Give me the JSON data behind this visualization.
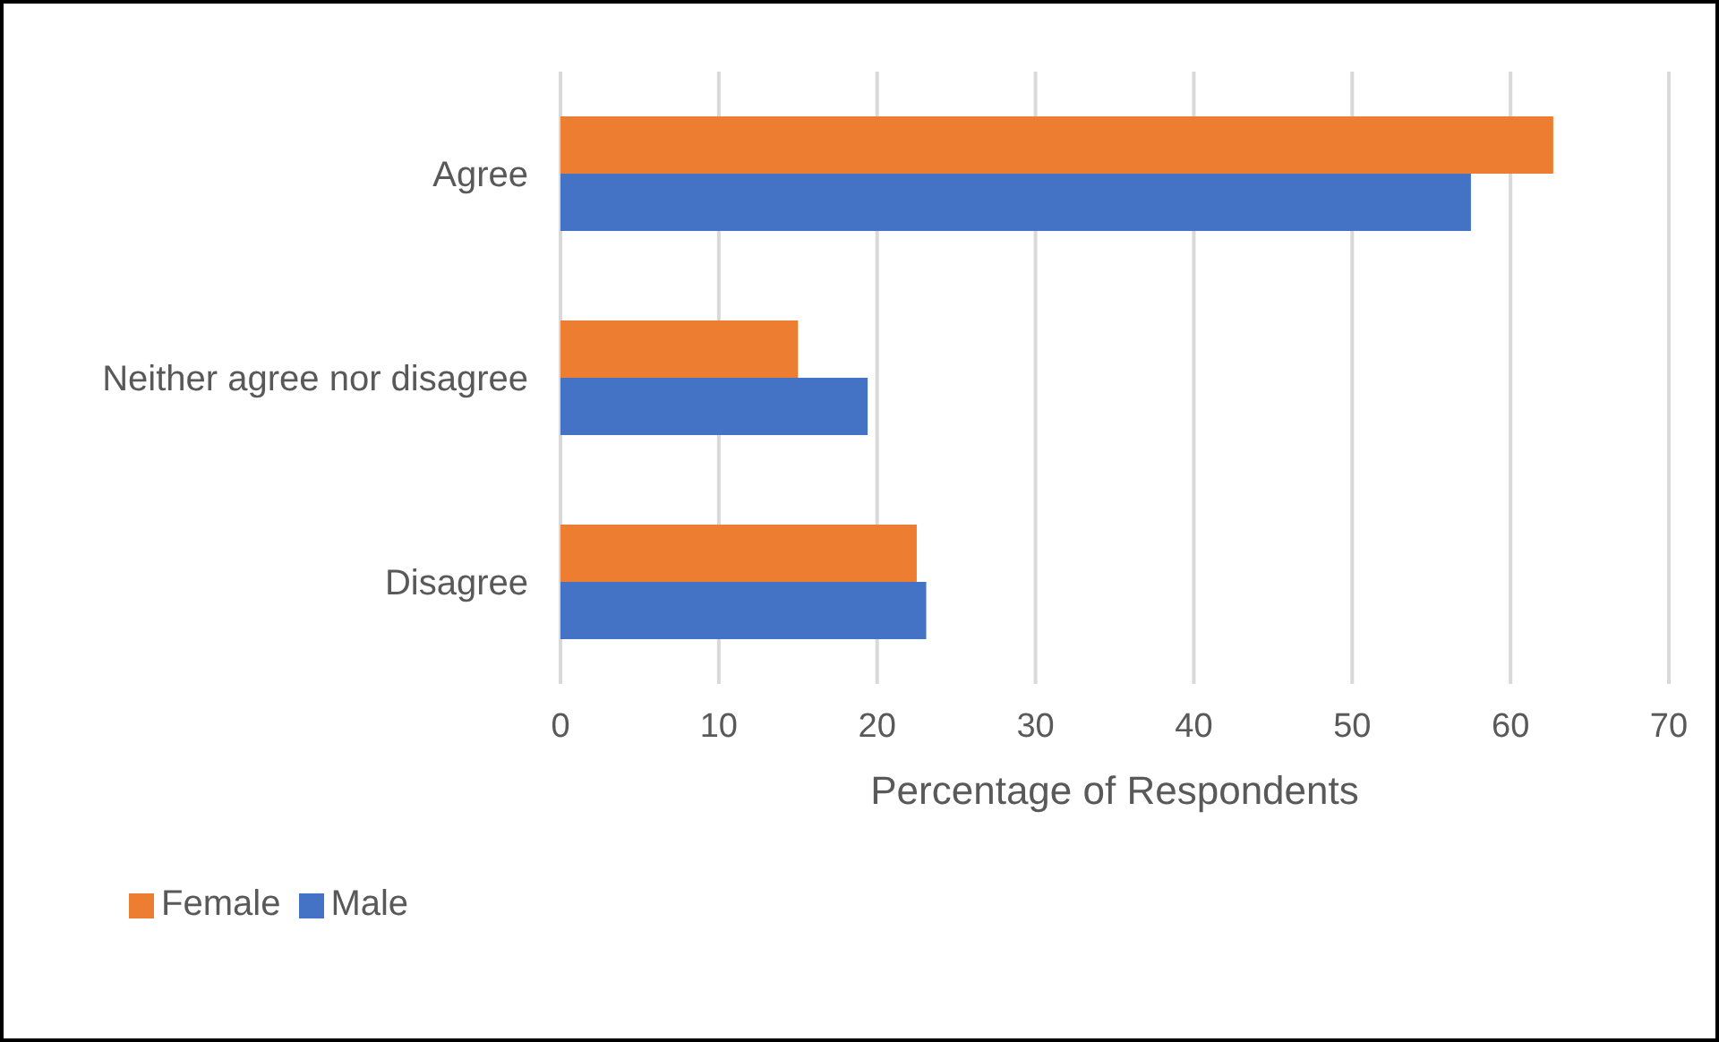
{
  "chart_data": {
    "type": "bar",
    "orientation": "horizontal",
    "categories": [
      "Agree",
      "Neither agree nor disagree",
      "Disagree"
    ],
    "series": [
      {
        "name": "Female",
        "color": "#ed7d31",
        "values": [
          62.7,
          15.0,
          22.5
        ]
      },
      {
        "name": "Male",
        "color": "#4472c4",
        "values": [
          57.5,
          19.4,
          23.1
        ]
      }
    ],
    "xlabel": "Percentage of Respondents",
    "xlim": [
      0,
      70
    ],
    "xticks": [
      0,
      10,
      20,
      30,
      40,
      50,
      60,
      70
    ],
    "grid": "x",
    "legend": "bottom left"
  }
}
